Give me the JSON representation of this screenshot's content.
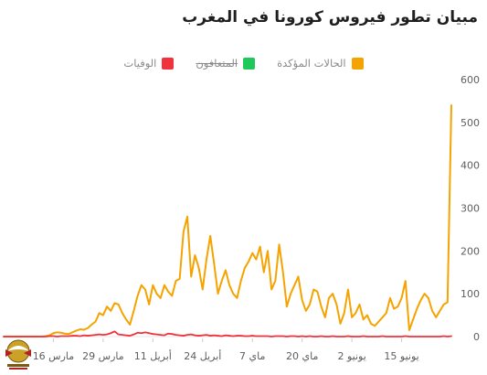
{
  "title": "مبيان تطور فيروس كورونا في المغرب",
  "legend": [
    {
      "label": "الحالات المؤكدة",
      "color": "#f5a300",
      "enabled": true
    },
    {
      "label": "المتعافون",
      "color": "#1ec95a",
      "enabled": false
    },
    {
      "label": "الوفيات",
      "color": "#f0323c",
      "enabled": true
    }
  ],
  "logo": {
    "icon": "emblem-icon"
  },
  "chart_data": {
    "type": "line",
    "title": "مبيان تطور فيروس كورونا في المغرب",
    "xlabel": "",
    "ylabel": "",
    "ylim": [
      0,
      600
    ],
    "yticks": [
      0,
      100,
      200,
      300,
      400,
      500,
      600
    ],
    "y_axis_side": "right",
    "grid": false,
    "legend_position": "top-center",
    "x_tick_labels": [
      {
        "index": 13,
        "label": "مارس 16"
      },
      {
        "index": 26,
        "label": "مارس 29"
      },
      {
        "index": 39,
        "label": "أبريل 11"
      },
      {
        "index": 52,
        "label": "أبريل 24"
      },
      {
        "index": 65,
        "label": "ماي 7"
      },
      {
        "index": 78,
        "label": "ماي 20"
      },
      {
        "index": 91,
        "label": "يونيو 2"
      },
      {
        "index": 104,
        "label": "يونيو 15"
      }
    ],
    "series": [
      {
        "name": "الحالات المؤكدة",
        "color": "#f5a300",
        "values": [
          0,
          0,
          0,
          0,
          0,
          0,
          0,
          0,
          0,
          0,
          0,
          1,
          3,
          8,
          10,
          9,
          7,
          6,
          10,
          14,
          17,
          16,
          20,
          28,
          35,
          55,
          50,
          70,
          60,
          78,
          75,
          55,
          40,
          28,
          60,
          95,
          120,
          110,
          75,
          120,
          100,
          90,
          120,
          105,
          95,
          130,
          135,
          245,
          280,
          140,
          190,
          160,
          110,
          180,
          235,
          170,
          100,
          130,
          155,
          120,
          100,
          90,
          130,
          160,
          175,
          195,
          180,
          210,
          150,
          200,
          110,
          130,
          215,
          150,
          70,
          100,
          120,
          140,
          85,
          60,
          75,
          110,
          105,
          70,
          45,
          90,
          100,
          75,
          30,
          55,
          110,
          45,
          55,
          75,
          40,
          50,
          30,
          25,
          35,
          45,
          55,
          90,
          65,
          70,
          90,
          130,
          15,
          40,
          65,
          85,
          100,
          90,
          60,
          45,
          60,
          75,
          80,
          540
        ]
      },
      {
        "name": "الوفيات",
        "color": "#f0323c",
        "values": [
          0,
          0,
          0,
          0,
          0,
          0,
          0,
          0,
          0,
          0,
          0,
          0,
          1,
          1,
          0,
          1,
          1,
          1,
          2,
          2,
          1,
          3,
          2,
          3,
          4,
          5,
          4,
          5,
          8,
          12,
          5,
          4,
          3,
          2,
          5,
          9,
          8,
          10,
          8,
          6,
          5,
          4,
          3,
          7,
          6,
          4,
          3,
          2,
          4,
          5,
          3,
          2,
          3,
          4,
          2,
          3,
          2,
          1,
          3,
          2,
          1,
          2,
          2,
          1,
          1,
          2,
          1,
          1,
          1,
          1,
          0,
          1,
          1,
          1,
          0,
          1,
          1,
          0,
          1,
          0,
          1,
          0,
          0,
          1,
          0,
          0,
          1,
          0,
          0,
          0,
          1,
          0,
          0,
          0,
          1,
          0,
          0,
          0,
          0,
          1,
          0,
          0,
          0,
          0,
          0,
          1,
          0,
          0,
          0,
          0,
          0,
          0,
          0,
          0,
          0,
          1,
          0,
          1
        ]
      }
    ]
  }
}
